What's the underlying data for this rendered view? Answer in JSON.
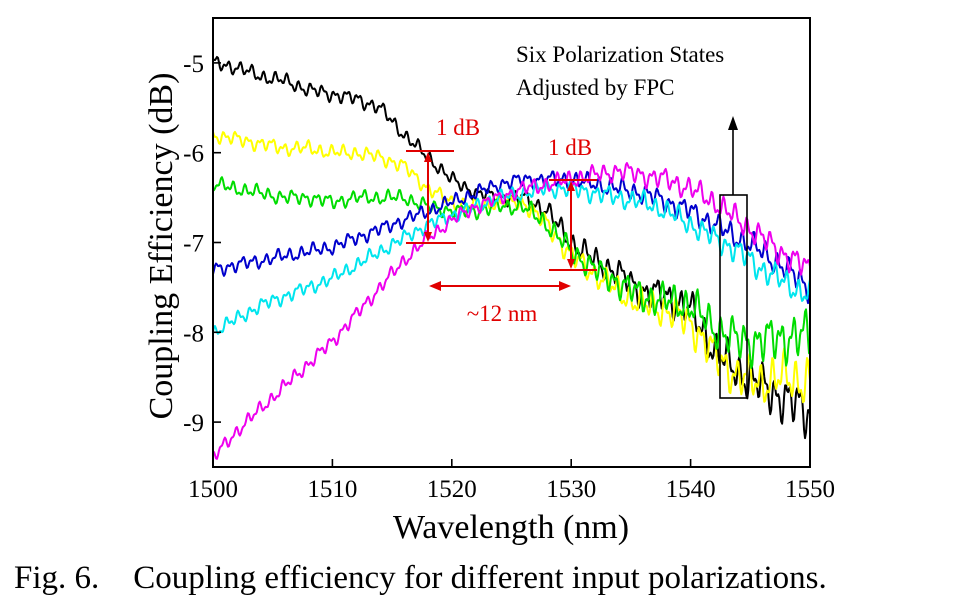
{
  "caption": {
    "number": "Fig. 6.",
    "text": "Coupling efficiency for different input polarizations."
  },
  "chart_data": {
    "type": "line",
    "xlabel": "Wavelength (nm)",
    "ylabel": "Coupling Efficiency (dB)",
    "xlim": [
      1500,
      1550
    ],
    "ylim": [
      -9.5,
      -4.5
    ],
    "xticks": [
      1500,
      1510,
      1520,
      1530,
      1540,
      1550
    ],
    "yticks": [
      -9,
      -8,
      -7,
      -6,
      -5
    ],
    "grid": false,
    "legend": null,
    "annotations": {
      "states_line1": "Six Polarization States",
      "states_line2": "Adjusted by FPC",
      "db_left": "1 dB",
      "db_right": "1 dB",
      "nm_span": "~12 nm"
    },
    "annotation_color": "#e00000",
    "series": [
      {
        "color": "#000000",
        "x": [
          1500,
          1502,
          1504,
          1506,
          1508,
          1510,
          1512,
          1514,
          1516,
          1518,
          1520,
          1522,
          1524,
          1526,
          1528,
          1530,
          1532,
          1534,
          1536,
          1538,
          1540,
          1542,
          1544,
          1546,
          1548,
          1550
        ],
        "y": [
          -5.0,
          -5.05,
          -5.15,
          -5.2,
          -5.3,
          -5.35,
          -5.4,
          -5.5,
          -5.8,
          -6.05,
          -6.3,
          -6.45,
          -6.5,
          -6.5,
          -6.65,
          -7.0,
          -7.2,
          -7.35,
          -7.55,
          -7.6,
          -7.75,
          -8.2,
          -8.45,
          -8.6,
          -8.75,
          -8.9
        ]
      },
      {
        "color": "#ffff00",
        "x": [
          1500,
          1502,
          1504,
          1506,
          1508,
          1510,
          1512,
          1514,
          1516,
          1518,
          1520,
          1522,
          1524,
          1526,
          1528,
          1530,
          1532,
          1534,
          1536,
          1538,
          1540,
          1542,
          1544,
          1546,
          1548,
          1550
        ],
        "y": [
          -5.8,
          -5.85,
          -5.9,
          -5.95,
          -5.95,
          -6.0,
          -6.0,
          -6.05,
          -6.15,
          -6.4,
          -6.55,
          -6.6,
          -6.55,
          -6.55,
          -6.8,
          -7.15,
          -7.35,
          -7.55,
          -7.7,
          -7.75,
          -7.9,
          -8.25,
          -8.5,
          -8.55,
          -8.5,
          -8.55
        ]
      },
      {
        "color": "#00dd00",
        "x": [
          1500,
          1502,
          1504,
          1506,
          1508,
          1510,
          1512,
          1514,
          1516,
          1518,
          1520,
          1522,
          1524,
          1526,
          1528,
          1530,
          1532,
          1534,
          1536,
          1538,
          1540,
          1542,
          1544,
          1546,
          1548,
          1550
        ],
        "y": [
          -6.35,
          -6.4,
          -6.45,
          -6.5,
          -6.5,
          -6.55,
          -6.5,
          -6.5,
          -6.5,
          -6.6,
          -6.65,
          -6.65,
          -6.6,
          -6.6,
          -6.8,
          -7.1,
          -7.3,
          -7.45,
          -7.6,
          -7.65,
          -7.7,
          -7.95,
          -8.1,
          -8.1,
          -8.05,
          -8.05
        ]
      },
      {
        "color": "#0000cc",
        "x": [
          1500,
          1502,
          1504,
          1506,
          1508,
          1510,
          1512,
          1514,
          1516,
          1518,
          1520,
          1522,
          1524,
          1526,
          1528,
          1530,
          1532,
          1534,
          1536,
          1538,
          1540,
          1542,
          1544,
          1546,
          1548,
          1550
        ],
        "y": [
          -7.3,
          -7.25,
          -7.2,
          -7.15,
          -7.1,
          -7.05,
          -6.95,
          -6.85,
          -6.75,
          -6.65,
          -6.55,
          -6.45,
          -6.35,
          -6.3,
          -6.3,
          -6.3,
          -6.35,
          -6.4,
          -6.45,
          -6.55,
          -6.65,
          -6.8,
          -6.95,
          -7.1,
          -7.3,
          -7.5
        ]
      },
      {
        "color": "#00e5ee",
        "x": [
          1500,
          1502,
          1504,
          1506,
          1508,
          1510,
          1512,
          1514,
          1516,
          1518,
          1520,
          1522,
          1524,
          1526,
          1528,
          1530,
          1532,
          1534,
          1536,
          1538,
          1540,
          1542,
          1544,
          1546,
          1548,
          1550
        ],
        "y": [
          -8.0,
          -7.85,
          -7.7,
          -7.6,
          -7.5,
          -7.4,
          -7.25,
          -7.1,
          -6.95,
          -6.8,
          -6.7,
          -6.6,
          -6.5,
          -6.45,
          -6.4,
          -6.4,
          -6.45,
          -6.5,
          -6.55,
          -6.65,
          -6.8,
          -6.95,
          -7.1,
          -7.3,
          -7.45,
          -7.6
        ]
      },
      {
        "color": "#ee00ee",
        "x": [
          1500,
          1502,
          1504,
          1506,
          1508,
          1510,
          1512,
          1514,
          1516,
          1518,
          1520,
          1522,
          1524,
          1526,
          1528,
          1530,
          1532,
          1534,
          1536,
          1538,
          1540,
          1542,
          1544,
          1546,
          1548,
          1550
        ],
        "y": [
          -9.4,
          -9.1,
          -8.85,
          -8.6,
          -8.35,
          -8.1,
          -7.8,
          -7.5,
          -7.2,
          -6.95,
          -6.75,
          -6.6,
          -6.5,
          -6.4,
          -6.35,
          -6.3,
          -6.25,
          -6.2,
          -6.25,
          -6.3,
          -6.4,
          -6.55,
          -6.75,
          -6.95,
          -7.15,
          -7.3
        ]
      }
    ]
  }
}
